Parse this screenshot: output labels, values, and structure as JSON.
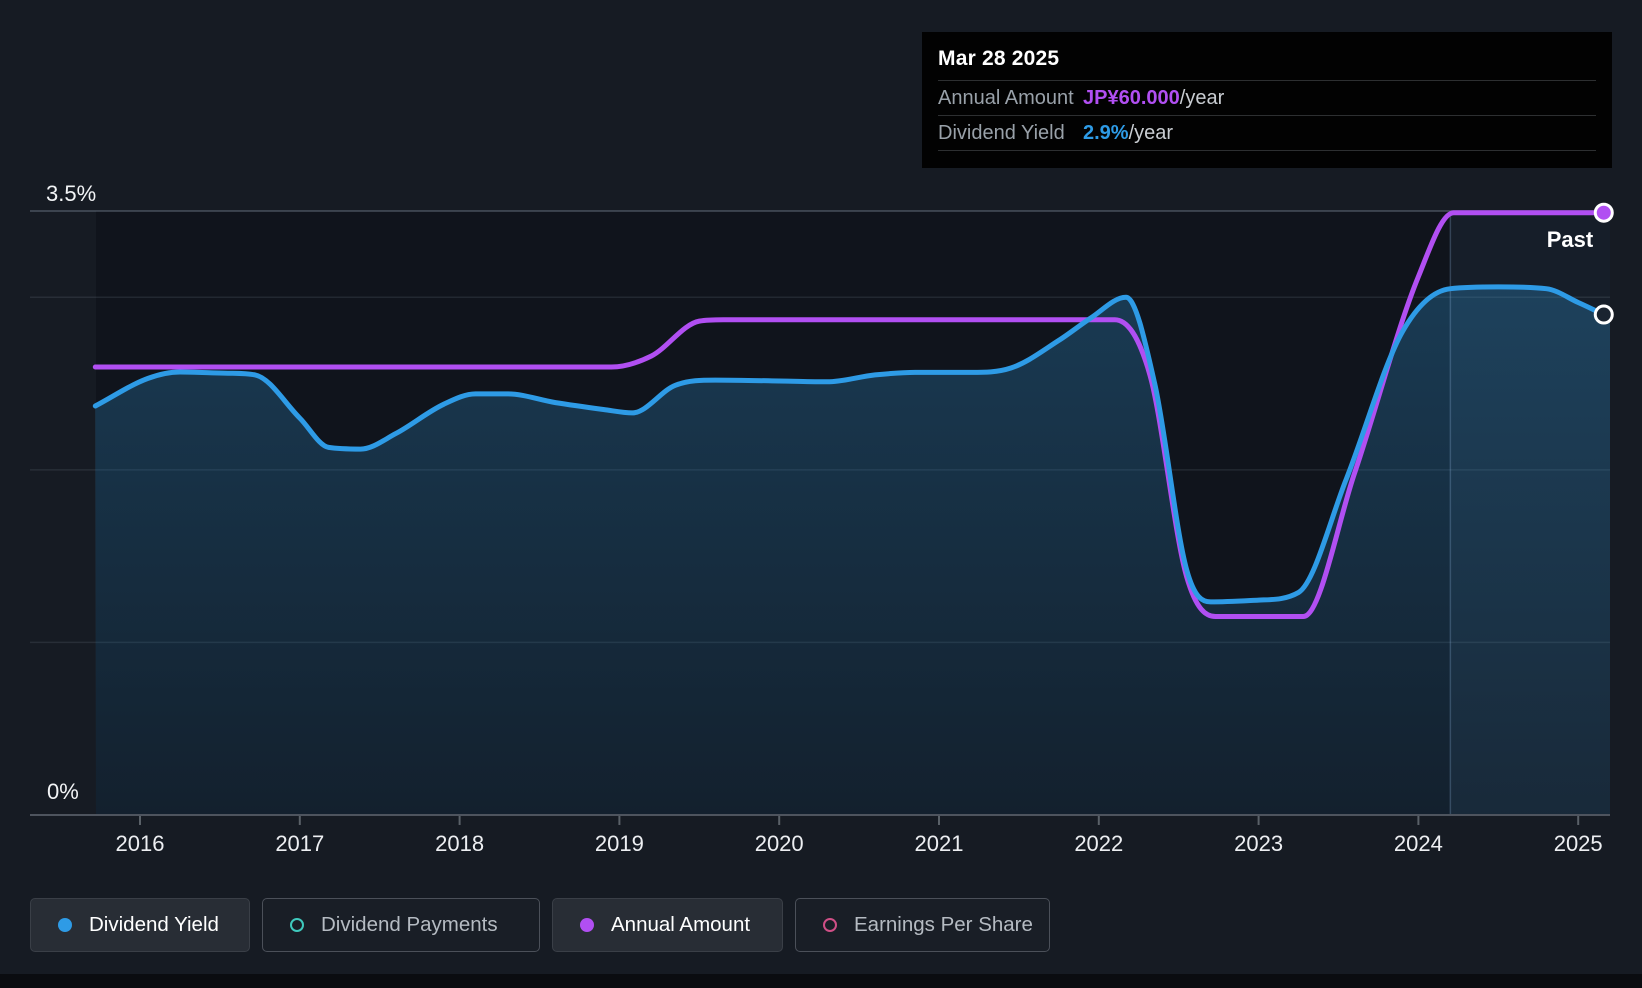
{
  "tooltip": {
    "date": "Mar 28 2025",
    "rows": [
      {
        "label": "Annual Amount",
        "value": "JP¥60.000",
        "suffix": "/year",
        "color": "#b14ff2"
      },
      {
        "label": "Dividend Yield",
        "value": "2.9%",
        "suffix": "/year",
        "color": "#2e9be6"
      }
    ]
  },
  "past_label": "Past",
  "y_axis": {
    "top_label": "3.5%",
    "bottom_label": "0%"
  },
  "x_axis": {
    "years": [
      "2016",
      "2017",
      "2018",
      "2019",
      "2020",
      "2021",
      "2022",
      "2023",
      "2024",
      "2025"
    ]
  },
  "legend": [
    {
      "label": "Dividend Yield",
      "color": "#2e9be6",
      "marker": "filled",
      "active": true
    },
    {
      "label": "Dividend Payments",
      "color": "#3fc9bd",
      "marker": "ring",
      "active": false
    },
    {
      "label": "Annual Amount",
      "color": "#b14ff2",
      "marker": "filled",
      "active": true
    },
    {
      "label": "Earnings Per Share",
      "color": "#cf4f86",
      "marker": "ring",
      "active": false
    }
  ],
  "colors": {
    "background": "#161b23",
    "plot_background": "#10141c",
    "past_band": "rgba(125,175,230,0.065)",
    "grid_major": "rgba(170,185,205,0.35)",
    "grid_minor": "rgba(160,175,195,0.13)",
    "axis_line": "#4e545e",
    "area_top": "rgba(45,140,200,0.32)",
    "area_bottom": "rgba(45,140,200,0.10)"
  },
  "chart_data": {
    "type": "line",
    "title": "Dividend history",
    "x_range": [
      2015.72,
      2025.19
    ],
    "ylim": [
      0,
      3.5
    ],
    "y_unit": "%",
    "gridlines_pct": [
      3.5,
      3.0,
      2.0,
      1.0,
      0
    ],
    "past_band_start_year": 2024.2,
    "current_date": "Mar 28 2025",
    "current_annual_amount": "JP¥60.000/year",
    "current_dividend_yield_pct": 2.9,
    "series": [
      {
        "name": "Dividend Yield",
        "color": "#2e9be6",
        "fill": true,
        "end_dot": "dark",
        "points": [
          [
            2015.72,
            2.37
          ],
          [
            2016.05,
            2.53
          ],
          [
            2016.25,
            2.567
          ],
          [
            2016.55,
            2.56
          ],
          [
            2016.72,
            2.55
          ],
          [
            2017.0,
            2.3
          ],
          [
            2017.18,
            2.13
          ],
          [
            2017.38,
            2.12
          ],
          [
            2017.6,
            2.21
          ],
          [
            2017.9,
            2.38
          ],
          [
            2018.1,
            2.44
          ],
          [
            2018.3,
            2.44
          ],
          [
            2018.6,
            2.39
          ],
          [
            2018.9,
            2.35
          ],
          [
            2019.08,
            2.33
          ],
          [
            2019.35,
            2.49
          ],
          [
            2019.6,
            2.52
          ],
          [
            2020.0,
            2.515
          ],
          [
            2020.3,
            2.51
          ],
          [
            2020.6,
            2.55
          ],
          [
            2020.85,
            2.565
          ],
          [
            2021.2,
            2.565
          ],
          [
            2021.45,
            2.59
          ],
          [
            2021.75,
            2.75
          ],
          [
            2021.95,
            2.88
          ],
          [
            2022.17,
            3.0
          ],
          [
            2022.35,
            2.5
          ],
          [
            2022.55,
            1.42
          ],
          [
            2022.7,
            1.235
          ],
          [
            2023.0,
            1.245
          ],
          [
            2023.25,
            1.29
          ],
          [
            2023.55,
            1.95
          ],
          [
            2023.9,
            2.8
          ],
          [
            2024.2,
            3.05
          ],
          [
            2024.5,
            3.06
          ],
          [
            2024.8,
            3.05
          ],
          [
            2025.0,
            2.97
          ],
          [
            2025.16,
            2.9
          ]
        ]
      },
      {
        "name": "Annual Amount",
        "color": "#b14ff2",
        "fill": false,
        "end_dot": "solid",
        "points": [
          [
            2015.72,
            2.596
          ],
          [
            2018.95,
            2.596
          ],
          [
            2019.2,
            2.66
          ],
          [
            2019.5,
            2.862
          ],
          [
            2019.65,
            2.87
          ],
          [
            2022.1,
            2.87
          ],
          [
            2022.32,
            2.55
          ],
          [
            2022.55,
            1.38
          ],
          [
            2022.73,
            1.15
          ],
          [
            2023.28,
            1.15
          ],
          [
            2023.6,
            1.98
          ],
          [
            2024.0,
            3.12
          ],
          [
            2024.22,
            3.49
          ],
          [
            2025.16,
            3.49
          ]
        ]
      }
    ]
  }
}
